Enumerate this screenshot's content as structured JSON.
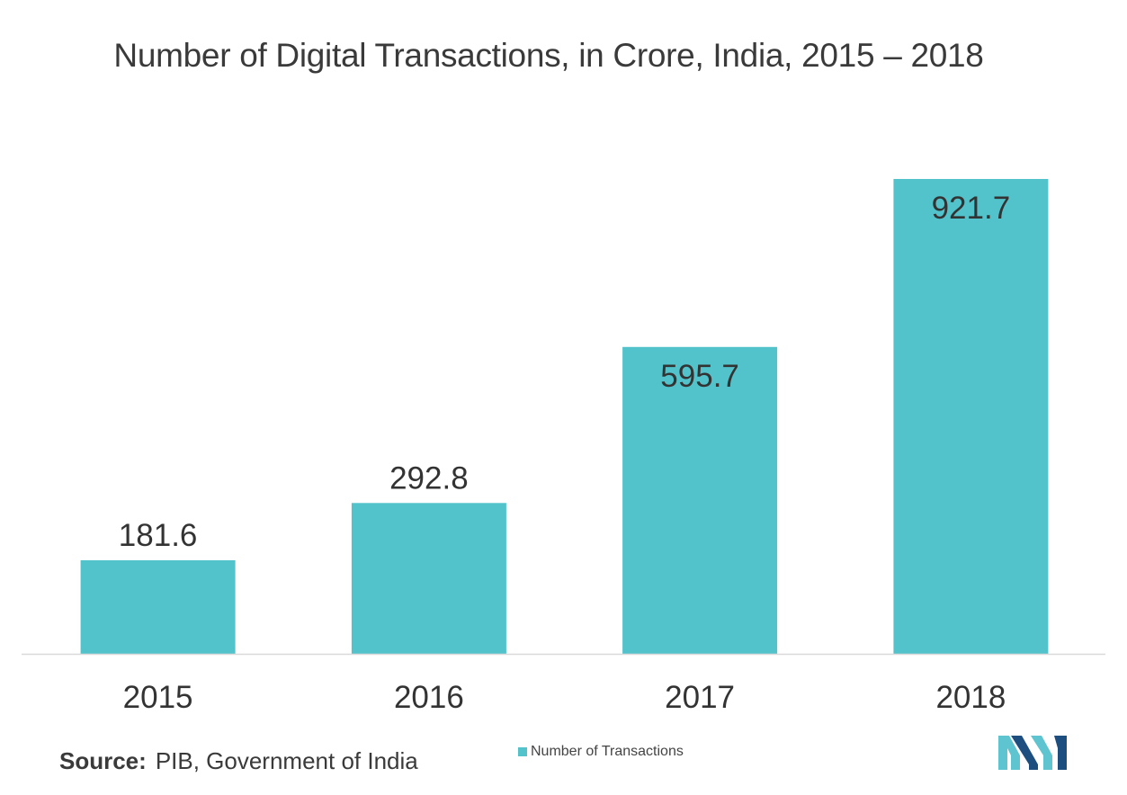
{
  "title": "Number of Digital Transactions, in Crore, India, 2015 – 2018",
  "source": {
    "label": "Source:",
    "text": "PIB, Government of India"
  },
  "legend": {
    "label": "Number of Transactions"
  },
  "colors": {
    "bar": "#53c3cb",
    "axis": "#d9d9d9",
    "text": "#3a3a3a",
    "logo_dark": "#1c4e80",
    "logo_light": "#5ec4cf"
  },
  "logo": {
    "name": "brand-logo-icon"
  },
  "chart_data": {
    "type": "bar",
    "title": "Number of Digital Transactions, in Crore, India, 2015 – 2018",
    "categories": [
      "2015",
      "2016",
      "2017",
      "2018"
    ],
    "series": [
      {
        "name": "Number of Transactions",
        "values": [
          181.6,
          292.8,
          595.7,
          921.7
        ],
        "labels": [
          "181.6",
          "292.8",
          "595.7",
          "921.7"
        ]
      }
    ],
    "xlabel": "",
    "ylabel": "",
    "ylim": [
      0,
      921.7
    ],
    "grid": false,
    "legend_position": "bottom-center",
    "data_labels": true
  }
}
